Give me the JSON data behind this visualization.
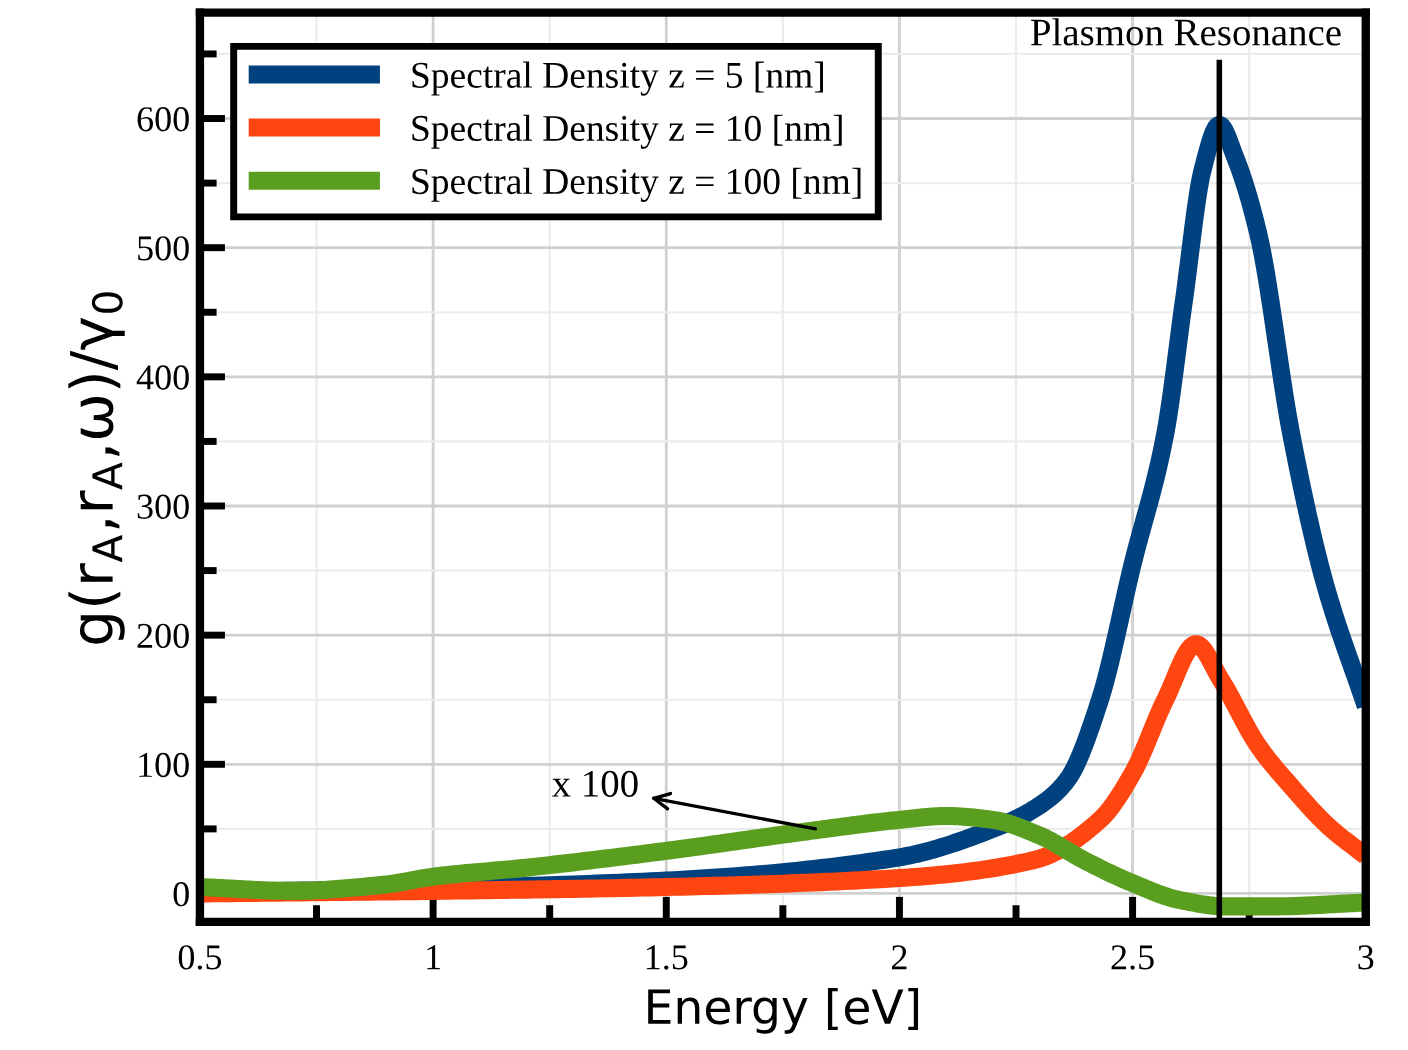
{
  "chart_data": {
    "type": "line",
    "xlabel": "Energy [eV]",
    "ylabel": "g(r$_{A}$,r$_{A}$,ω)/γ$_{0}$",
    "xlim": [
      0.5,
      3
    ],
    "xticks": [
      0.5,
      1,
      1.5,
      2,
      2.5,
      3
    ],
    "ylim": [
      -22,
      682
    ],
    "yticks": [
      0,
      100,
      200,
      300,
      400,
      500,
      600
    ],
    "grid": true,
    "legend": "top left",
    "line_style": "solid",
    "marker": "none",
    "series": [
      {
        "name": "Spectral Density z = 5 [nm]",
        "color": "#00427f",
        "x": [
          0.5,
          1.0,
          1.5,
          2.0,
          2.2,
          2.3,
          2.36,
          2.43,
          2.5,
          2.57,
          2.61,
          2.65,
          2.686,
          2.72,
          2.77,
          2.84,
          2.91,
          3.0
        ],
        "values": [
          1,
          4,
          10,
          28,
          50,
          68,
          88,
          150,
          255,
          356,
          459,
          560,
          595,
          570,
          510,
          356,
          243,
          145
        ]
      },
      {
        "name": "Spectral Density z = 10 [nm]",
        "color": "#ff4510",
        "x": [
          0.5,
          1.0,
          1.5,
          2.0,
          2.29,
          2.43,
          2.5,
          2.57,
          2.636,
          2.69,
          2.77,
          2.84,
          2.92,
          3.0
        ],
        "values": [
          0,
          2,
          5,
          12,
          26,
          57,
          93,
          150,
          193,
          165,
          114,
          83,
          52,
          29
        ]
      },
      {
        "name": "Spectral Density z = 100 [nm]",
        "color": "#5a9e1f",
        "x": [
          0.5,
          0.7,
          0.9,
          1.0,
          1.2,
          1.5,
          1.8,
          2.0,
          2.1,
          2.2,
          2.3,
          2.4,
          2.5,
          2.6,
          2.7,
          2.8,
          3.0
        ],
        "values": [
          5,
          2,
          7,
          13,
          20,
          33,
          48,
          57,
          60,
          57,
          45,
          25,
          8,
          -5,
          -10,
          -10,
          -7
        ]
      }
    ],
    "ref_lines": [
      {
        "axis": "x",
        "value": 2.686,
        "label": "Plasmon Resonance",
        "color": "#000000",
        "line_style": "solid"
      }
    ],
    "annotations": [
      {
        "text": "x 100",
        "x": 1.82,
        "y": 50
      }
    ]
  }
}
